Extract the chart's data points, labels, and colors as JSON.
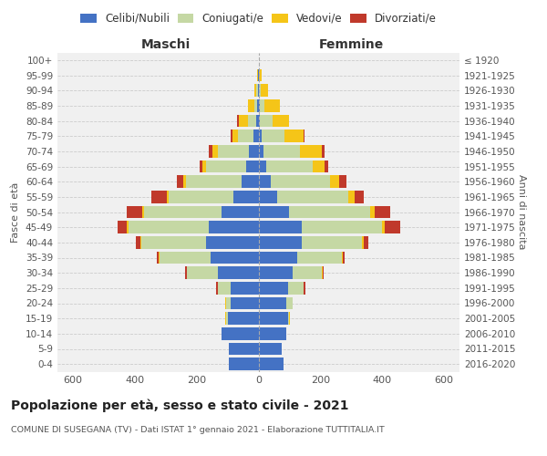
{
  "age_groups": [
    "0-4",
    "5-9",
    "10-14",
    "15-19",
    "20-24",
    "25-29",
    "30-34",
    "35-39",
    "40-44",
    "45-49",
    "50-54",
    "55-59",
    "60-64",
    "65-69",
    "70-74",
    "75-79",
    "80-84",
    "85-89",
    "90-94",
    "95-99",
    "100+"
  ],
  "birth_years": [
    "2016-2020",
    "2011-2015",
    "2006-2010",
    "2001-2005",
    "1996-2000",
    "1991-1995",
    "1986-1990",
    "1981-1985",
    "1976-1980",
    "1971-1975",
    "1966-1970",
    "1961-1965",
    "1956-1960",
    "1951-1955",
    "1946-1950",
    "1941-1945",
    "1936-1940",
    "1931-1935",
    "1926-1930",
    "1921-1925",
    "≤ 1920"
  ],
  "colors": {
    "celibi": "#4472c4",
    "coniugati": "#c5d8a4",
    "vedovi": "#f5c518",
    "divorziati": "#c0392b"
  },
  "maschi": {
    "celibi": [
      95,
      95,
      120,
      100,
      90,
      90,
      130,
      155,
      170,
      160,
      120,
      80,
      55,
      40,
      30,
      15,
      8,
      4,
      2,
      1,
      0
    ],
    "coniugati": [
      0,
      0,
      0,
      5,
      15,
      40,
      100,
      165,
      210,
      260,
      250,
      210,
      180,
      130,
      100,
      50,
      25,
      10,
      4,
      0,
      0
    ],
    "vedovi": [
      0,
      0,
      0,
      2,
      3,
      2,
      2,
      2,
      2,
      5,
      5,
      5,
      8,
      10,
      20,
      20,
      30,
      20,
      8,
      2,
      0
    ],
    "divorziati": [
      0,
      0,
      0,
      0,
      0,
      5,
      5,
      8,
      15,
      30,
      50,
      50,
      20,
      10,
      10,
      5,
      5,
      0,
      0,
      0,
      0
    ]
  },
  "femmine": {
    "celibi": [
      80,
      75,
      90,
      95,
      90,
      95,
      110,
      125,
      140,
      140,
      100,
      60,
      40,
      25,
      15,
      10,
      5,
      4,
      2,
      1,
      0
    ],
    "coniugati": [
      0,
      0,
      0,
      5,
      20,
      50,
      95,
      145,
      195,
      260,
      260,
      230,
      190,
      150,
      120,
      75,
      40,
      15,
      5,
      0,
      0
    ],
    "vedovi": [
      0,
      0,
      0,
      2,
      2,
      2,
      2,
      2,
      5,
      8,
      15,
      20,
      30,
      40,
      70,
      60,
      55,
      50,
      25,
      10,
      2
    ],
    "divorziati": [
      0,
      0,
      0,
      0,
      0,
      5,
      5,
      8,
      15,
      50,
      50,
      30,
      25,
      10,
      10,
      5,
      0,
      0,
      0,
      0,
      0
    ]
  },
  "title": "Popolazione per età, sesso e stato civile - 2021",
  "subtitle": "COMUNE DI SUSEGANA (TV) - Dati ISTAT 1° gennaio 2021 - Elaborazione TUTTITALIA.IT",
  "xlabel_left": "Maschi",
  "xlabel_right": "Femmine",
  "ylabel_left": "Fasce di età",
  "ylabel_right": "Anni di nascita",
  "xlim": 650,
  "bg_color": "#f0f0f0",
  "grid_color": "#cccccc"
}
